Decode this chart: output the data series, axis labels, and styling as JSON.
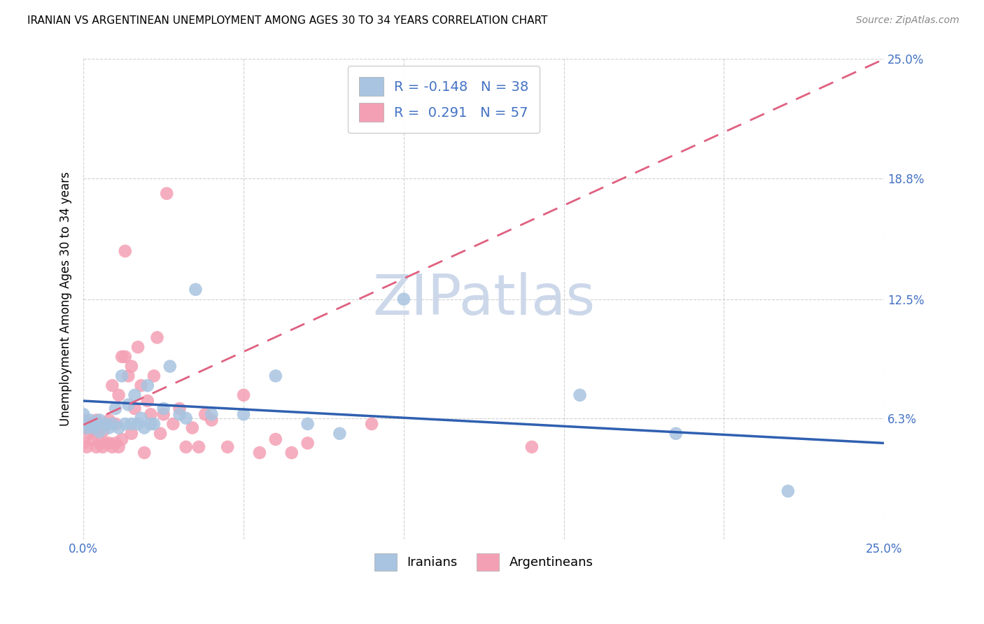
{
  "title": "IRANIAN VS ARGENTINEAN UNEMPLOYMENT AMONG AGES 30 TO 34 YEARS CORRELATION CHART",
  "source": "Source: ZipAtlas.com",
  "ylabel": "Unemployment Among Ages 30 to 34 years",
  "xlim": [
    0.0,
    0.25
  ],
  "ylim": [
    0.0,
    0.25
  ],
  "iranian_R": "-0.148",
  "iranian_N": "38",
  "argentinean_R": "0.291",
  "argentinean_N": "57",
  "iranian_color": "#a8c4e0",
  "argentinean_color": "#f4a0b4",
  "iranian_line_color": "#3060b0",
  "argentinean_line_color": "#e06080",
  "watermark_color": "#ccd8ea",
  "iranians_x": [
    0.0,
    0.0,
    0.001,
    0.002,
    0.003,
    0.004,
    0.005,
    0.005,
    0.007,
    0.008,
    0.009,
    0.01,
    0.011,
    0.012,
    0.013,
    0.014,
    0.015,
    0.016,
    0.017,
    0.018,
    0.019,
    0.02,
    0.021,
    0.022,
    0.025,
    0.027,
    0.03,
    0.032,
    0.035,
    0.04,
    0.05,
    0.06,
    0.07,
    0.08,
    0.1,
    0.155,
    0.185,
    0.22
  ],
  "iranians_y": [
    0.06,
    0.065,
    0.058,
    0.062,
    0.058,
    0.06,
    0.056,
    0.062,
    0.06,
    0.058,
    0.06,
    0.068,
    0.058,
    0.085,
    0.06,
    0.07,
    0.06,
    0.075,
    0.06,
    0.063,
    0.058,
    0.08,
    0.06,
    0.06,
    0.068,
    0.09,
    0.065,
    0.063,
    0.13,
    0.065,
    0.065,
    0.085,
    0.06,
    0.055,
    0.125,
    0.075,
    0.055,
    0.025
  ],
  "argentineans_x": [
    0.0,
    0.0,
    0.0,
    0.001,
    0.002,
    0.002,
    0.003,
    0.003,
    0.004,
    0.004,
    0.005,
    0.005,
    0.006,
    0.006,
    0.007,
    0.007,
    0.008,
    0.008,
    0.009,
    0.009,
    0.01,
    0.01,
    0.011,
    0.011,
    0.012,
    0.012,
    0.013,
    0.013,
    0.014,
    0.015,
    0.015,
    0.016,
    0.017,
    0.018,
    0.019,
    0.02,
    0.021,
    0.022,
    0.023,
    0.024,
    0.025,
    0.026,
    0.028,
    0.03,
    0.032,
    0.034,
    0.036,
    0.038,
    0.04,
    0.045,
    0.05,
    0.055,
    0.06,
    0.065,
    0.07,
    0.09,
    0.14
  ],
  "argentineans_y": [
    0.05,
    0.058,
    0.062,
    0.048,
    0.055,
    0.06,
    0.052,
    0.058,
    0.048,
    0.062,
    0.05,
    0.058,
    0.048,
    0.056,
    0.05,
    0.06,
    0.05,
    0.062,
    0.048,
    0.08,
    0.05,
    0.06,
    0.048,
    0.075,
    0.052,
    0.095,
    0.095,
    0.15,
    0.085,
    0.055,
    0.09,
    0.068,
    0.1,
    0.08,
    0.045,
    0.072,
    0.065,
    0.085,
    0.105,
    0.055,
    0.065,
    0.18,
    0.06,
    0.068,
    0.048,
    0.058,
    0.048,
    0.065,
    0.062,
    0.048,
    0.075,
    0.045,
    0.052,
    0.045,
    0.05,
    0.06,
    0.048
  ]
}
